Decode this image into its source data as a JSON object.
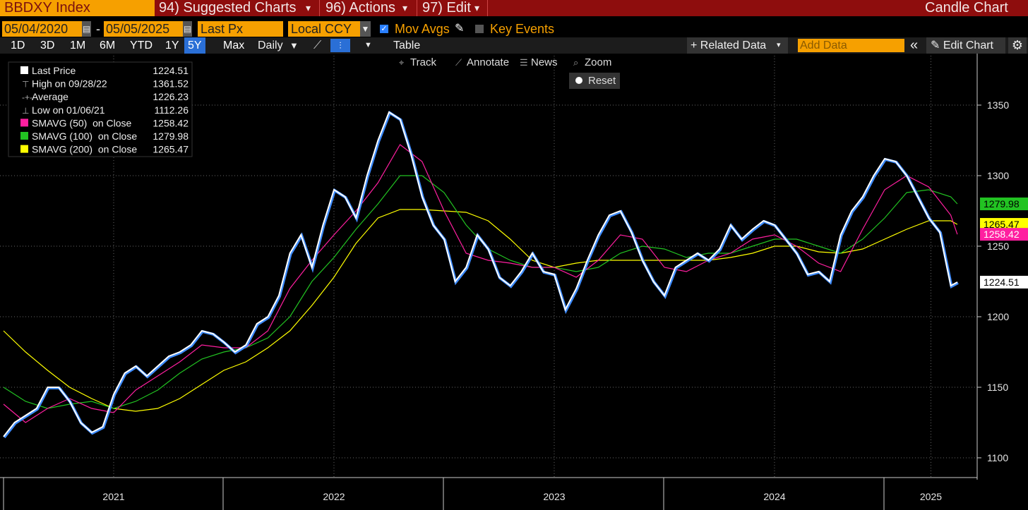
{
  "header": {
    "ticker": "BBDXY Index",
    "menus": [
      "94) Suggested Charts",
      "96) Actions",
      "97) Edit"
    ],
    "chart_kind": "Candle Chart"
  },
  "controls": {
    "start_date": "05/04/2020",
    "separator": "-",
    "end_date": "05/05/2025",
    "field": "Last Px",
    "currency": "Local CCY",
    "mov_avgs": "Mov Avgs",
    "key_events": "Key Events"
  },
  "periods": [
    "1D",
    "3D",
    "1M",
    "6M",
    "YTD",
    "1Y",
    "5Y",
    "Max"
  ],
  "selected_period": "5Y",
  "frequency": "Daily",
  "table": "Table",
  "related_data": "+ Related Data",
  "add_data": "Add Data",
  "edit_chart": "Edit Chart",
  "tools": [
    "Track",
    "Annotate",
    "News",
    "Zoom"
  ],
  "reset": "Reset",
  "chart_data": {
    "type": "line",
    "legend": [
      {
        "label": "Last Price",
        "value": 1224.51,
        "color": "#ffffff"
      },
      {
        "label": "High on 09/28/22",
        "value": 1361.52
      },
      {
        "label": "Average",
        "value": 1226.23
      },
      {
        "label": "Low on 01/06/21",
        "value": 1112.26
      },
      {
        "label": "SMAVG (50)  on Close",
        "value": 1258.42,
        "color": "#ff1fa0"
      },
      {
        "label": "SMAVG (100)  on Close",
        "value": 1279.98,
        "color": "#22c322"
      },
      {
        "label": "SMAVG (200)  on Close",
        "value": 1265.47,
        "color": "#ffff00"
      }
    ],
    "xlim": [
      2020.984,
      2025.42
    ],
    "xticks": [
      {
        "value": 2021.5,
        "label": "2021"
      },
      {
        "value": 2022.5,
        "label": "2022"
      },
      {
        "value": 2023.5,
        "label": "2023"
      },
      {
        "value": 2024.5,
        "label": "2024"
      },
      {
        "value": 2025.21,
        "label": "2025"
      }
    ],
    "ylim": [
      1087,
      1387
    ],
    "yticks": [
      1100,
      1150,
      1200,
      1250,
      1300,
      1350
    ],
    "grid": true,
    "series": [
      {
        "name": "Last Price",
        "color": "#ffffff",
        "x": [
          2021.0,
          2021.05,
          2021.1,
          2021.15,
          2021.2,
          2021.25,
          2021.3,
          2021.35,
          2021.4,
          2021.45,
          2021.5,
          2021.55,
          2021.6,
          2021.65,
          2021.7,
          2021.75,
          2021.8,
          2021.85,
          2021.9,
          2021.95,
          2022.0,
          2022.05,
          2022.1,
          2022.15,
          2022.2,
          2022.25,
          2022.3,
          2022.35,
          2022.4,
          2022.45,
          2022.5,
          2022.55,
          2022.6,
          2022.65,
          2022.7,
          2022.75,
          2022.8,
          2022.85,
          2022.9,
          2022.95,
          2023.0,
          2023.05,
          2023.1,
          2023.15,
          2023.2,
          2023.25,
          2023.3,
          2023.35,
          2023.4,
          2023.45,
          2023.5,
          2023.55,
          2023.6,
          2023.65,
          2023.7,
          2023.75,
          2023.8,
          2023.85,
          2023.9,
          2023.95,
          2024.0,
          2024.05,
          2024.1,
          2024.15,
          2024.2,
          2024.25,
          2024.3,
          2024.35,
          2024.4,
          2024.45,
          2024.5,
          2024.55,
          2024.6,
          2024.65,
          2024.7,
          2024.75,
          2024.8,
          2024.85,
          2024.9,
          2024.95,
          2025.0,
          2025.05,
          2025.1,
          2025.15,
          2025.2,
          2025.25,
          2025.3,
          2025.33
        ],
        "values": [
          1115,
          1125,
          1130,
          1135,
          1150,
          1150,
          1140,
          1125,
          1118,
          1122,
          1145,
          1160,
          1165,
          1158,
          1165,
          1172,
          1175,
          1180,
          1190,
          1188,
          1182,
          1175,
          1180,
          1195,
          1200,
          1215,
          1245,
          1258,
          1235,
          1265,
          1290,
          1285,
          1270,
          1300,
          1325,
          1345,
          1340,
          1315,
          1285,
          1265,
          1255,
          1225,
          1235,
          1258,
          1248,
          1228,
          1222,
          1232,
          1245,
          1232,
          1230,
          1205,
          1220,
          1240,
          1258,
          1272,
          1275,
          1260,
          1240,
          1225,
          1215,
          1235,
          1240,
          1245,
          1240,
          1248,
          1265,
          1255,
          1262,
          1268,
          1265,
          1255,
          1245,
          1230,
          1232,
          1225,
          1258,
          1275,
          1285,
          1300,
          1312,
          1310,
          1300,
          1285,
          1270,
          1260,
          1222,
          1224.51
        ]
      },
      {
        "name": "SMAVG (50)",
        "color": "#ff1fa0",
        "x": [
          2021.0,
          2021.1,
          2021.2,
          2021.3,
          2021.4,
          2021.5,
          2021.6,
          2021.7,
          2021.8,
          2021.9,
          2022.0,
          2022.1,
          2022.2,
          2022.3,
          2022.4,
          2022.5,
          2022.6,
          2022.7,
          2022.8,
          2022.9,
          2023.0,
          2023.1,
          2023.2,
          2023.3,
          2023.4,
          2023.5,
          2023.6,
          2023.7,
          2023.8,
          2023.9,
          2024.0,
          2024.1,
          2024.2,
          2024.3,
          2024.4,
          2024.5,
          2024.6,
          2024.7,
          2024.8,
          2024.9,
          2025.0,
          2025.1,
          2025.2,
          2025.3,
          2025.33
        ],
        "values": [
          1138,
          1125,
          1135,
          1142,
          1135,
          1132,
          1148,
          1158,
          1168,
          1180,
          1178,
          1178,
          1190,
          1220,
          1240,
          1258,
          1275,
          1295,
          1322,
          1310,
          1275,
          1245,
          1240,
          1238,
          1235,
          1235,
          1228,
          1240,
          1258,
          1255,
          1235,
          1232,
          1240,
          1245,
          1255,
          1258,
          1250,
          1238,
          1232,
          1262,
          1290,
          1300,
          1292,
          1272,
          1258.42
        ]
      },
      {
        "name": "SMAVG (100)",
        "color": "#22c322",
        "x": [
          2021.0,
          2021.1,
          2021.2,
          2021.3,
          2021.4,
          2021.5,
          2021.6,
          2021.7,
          2021.8,
          2021.9,
          2022.0,
          2022.1,
          2022.2,
          2022.3,
          2022.4,
          2022.5,
          2022.6,
          2022.7,
          2022.8,
          2022.9,
          2023.0,
          2023.1,
          2023.2,
          2023.3,
          2023.4,
          2023.5,
          2023.6,
          2023.7,
          2023.8,
          2023.9,
          2024.0,
          2024.1,
          2024.2,
          2024.3,
          2024.4,
          2024.5,
          2024.6,
          2024.7,
          2024.8,
          2024.9,
          2025.0,
          2025.1,
          2025.2,
          2025.3,
          2025.33
        ],
        "values": [
          1150,
          1140,
          1135,
          1138,
          1140,
          1135,
          1140,
          1148,
          1160,
          1170,
          1175,
          1178,
          1185,
          1200,
          1225,
          1242,
          1262,
          1280,
          1300,
          1300,
          1288,
          1265,
          1248,
          1240,
          1235,
          1235,
          1232,
          1235,
          1245,
          1250,
          1248,
          1242,
          1245,
          1245,
          1250,
          1255,
          1255,
          1250,
          1245,
          1255,
          1270,
          1288,
          1290,
          1285,
          1279.98
        ]
      },
      {
        "name": "SMAVG (200)",
        "color": "#ffff00",
        "x": [
          2021.0,
          2021.1,
          2021.2,
          2021.3,
          2021.4,
          2021.5,
          2021.6,
          2021.7,
          2021.8,
          2021.9,
          2022.0,
          2022.1,
          2022.2,
          2022.3,
          2022.4,
          2022.5,
          2022.6,
          2022.7,
          2022.8,
          2022.9,
          2023.0,
          2023.1,
          2023.2,
          2023.3,
          2023.4,
          2023.5,
          2023.6,
          2023.7,
          2023.8,
          2023.9,
          2024.0,
          2024.1,
          2024.2,
          2024.3,
          2024.4,
          2024.5,
          2024.6,
          2024.7,
          2024.8,
          2024.9,
          2025.0,
          2025.1,
          2025.2,
          2025.3,
          2025.33
        ],
        "values": [
          1190,
          1175,
          1162,
          1150,
          1142,
          1135,
          1133,
          1135,
          1142,
          1152,
          1162,
          1168,
          1178,
          1190,
          1208,
          1228,
          1252,
          1270,
          1276,
          1276,
          1275,
          1274,
          1268,
          1255,
          1240,
          1235,
          1238,
          1240,
          1240,
          1240,
          1240,
          1240,
          1240,
          1242,
          1245,
          1250,
          1250,
          1246,
          1245,
          1248,
          1255,
          1262,
          1268,
          1268,
          1265.47
        ]
      }
    ]
  }
}
